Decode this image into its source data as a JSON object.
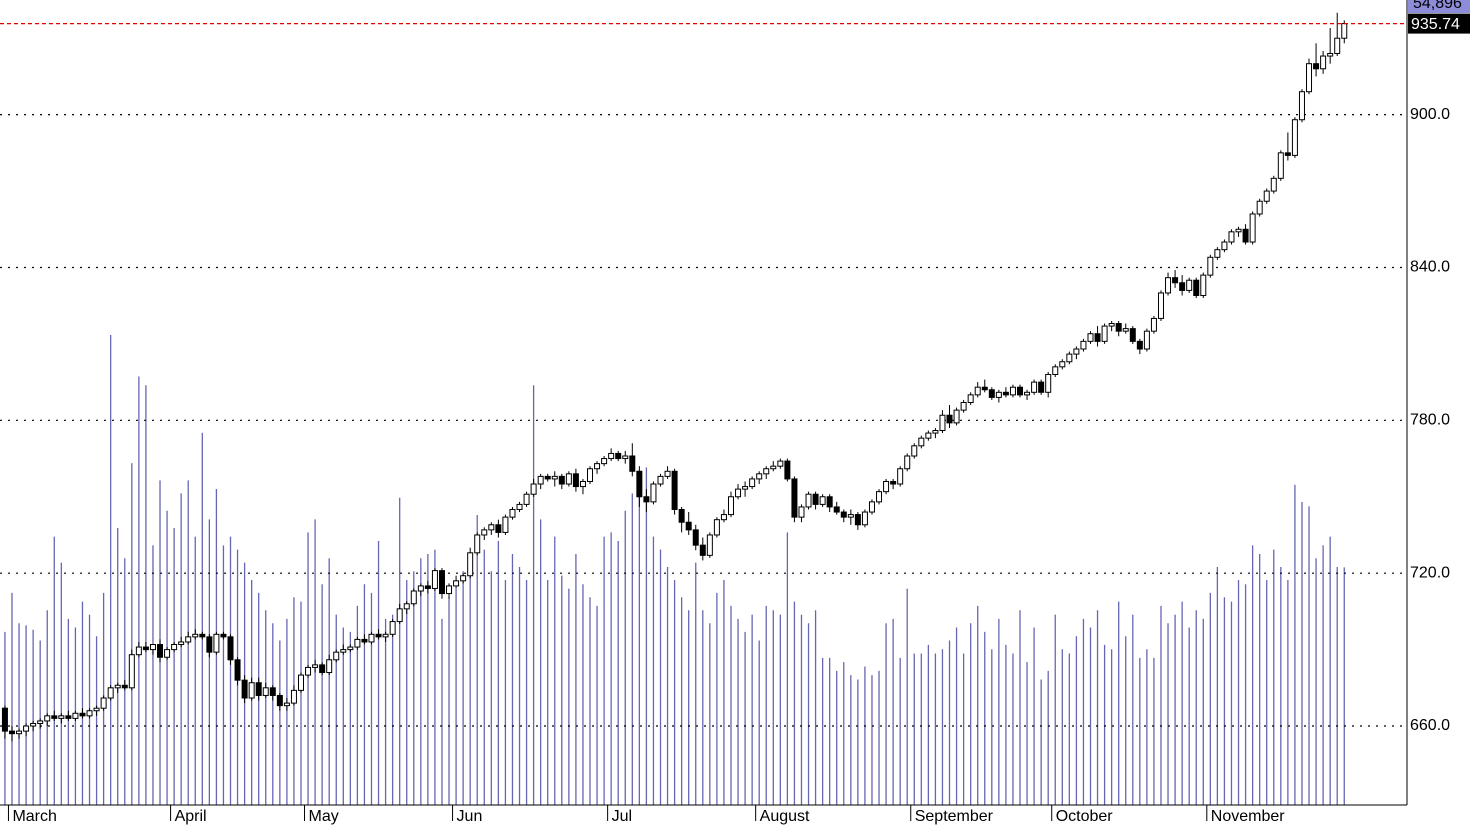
{
  "chart_data": {
    "type": "candlestick",
    "xlim": [
      -0.7,
      198.9
    ],
    "ylim": [
      629,
      945
    ],
    "y2lim": [
      0,
      186000
    ],
    "xticks": [
      {
        "value": 0.5,
        "label": "March"
      },
      {
        "value": 23.5,
        "label": "April"
      },
      {
        "value": 42.5,
        "label": "May"
      },
      {
        "value": 63.5,
        "label": "Jun"
      },
      {
        "value": 85.5,
        "label": "Jul"
      },
      {
        "value": 106.5,
        "label": "August"
      },
      {
        "value": 128.5,
        "label": "September"
      },
      {
        "value": 148.5,
        "label": "October"
      },
      {
        "value": 170.5,
        "label": "November"
      }
    ],
    "yticks": [
      {
        "value": 660,
        "label": "660.0"
      },
      {
        "value": 720,
        "label": "720.0"
      },
      {
        "value": 780,
        "label": "780.0"
      },
      {
        "value": 840,
        "label": "840.0"
      },
      {
        "value": 900,
        "label": "900.0"
      }
    ],
    "grid": true,
    "up_color": "#ffffff",
    "down_color": "#000000",
    "volume_color": "#6666b3",
    "last_line_color": "#e00000",
    "last_volume_label": "54,896",
    "ohlc": [
      [
        667,
        668,
        655,
        658
      ],
      [
        658,
        660,
        654,
        657
      ],
      [
        657,
        659,
        655,
        658
      ],
      [
        658,
        661,
        656,
        660
      ],
      [
        660,
        662,
        658,
        661
      ],
      [
        661,
        663,
        659,
        662
      ],
      [
        662,
        665,
        660,
        664
      ],
      [
        664,
        666,
        662,
        663
      ],
      [
        663,
        665,
        661,
        664
      ],
      [
        664,
        666,
        662,
        663
      ],
      [
        663,
        666,
        662,
        665
      ],
      [
        665,
        667,
        663,
        664
      ],
      [
        664,
        667,
        663,
        666
      ],
      [
        666,
        668,
        664,
        667
      ],
      [
        667,
        672,
        666,
        671
      ],
      [
        671,
        676,
        670,
        675
      ],
      [
        675,
        677,
        673,
        676
      ],
      [
        676,
        678,
        674,
        675
      ],
      [
        675,
        690,
        674,
        688
      ],
      [
        688,
        693,
        687,
        691
      ],
      [
        691,
        693,
        689,
        690
      ],
      [
        690,
        692,
        688,
        692
      ],
      [
        692,
        694,
        685,
        687
      ],
      [
        687,
        691,
        686,
        690
      ],
      [
        690,
        693,
        689,
        692
      ],
      [
        692,
        695,
        691,
        693
      ],
      [
        693,
        697,
        692,
        695
      ],
      [
        695,
        698,
        694,
        696
      ],
      [
        696,
        697,
        694,
        695
      ],
      [
        695,
        696,
        687,
        689
      ],
      [
        689,
        697,
        688,
        696
      ],
      [
        696,
        697,
        694,
        695
      ],
      [
        695,
        696,
        684,
        686
      ],
      [
        686,
        687,
        676,
        678
      ],
      [
        678,
        680,
        669,
        671
      ],
      [
        671,
        679,
        670,
        677
      ],
      [
        677,
        679,
        670,
        672
      ],
      [
        672,
        677,
        671,
        675
      ],
      [
        675,
        676,
        670,
        672
      ],
      [
        672,
        673,
        666,
        668
      ],
      [
        668,
        671,
        666,
        669
      ],
      [
        669,
        676,
        668,
        674
      ],
      [
        674,
        681,
        673,
        680
      ],
      [
        680,
        684,
        679,
        683
      ],
      [
        683,
        686,
        681,
        684
      ],
      [
        684,
        685,
        680,
        681
      ],
      [
        681,
        688,
        680,
        686
      ],
      [
        686,
        690,
        685,
        689
      ],
      [
        689,
        692,
        688,
        690
      ],
      [
        690,
        692,
        689,
        691
      ],
      [
        691,
        695,
        690,
        694
      ],
      [
        694,
        696,
        692,
        693
      ],
      [
        693,
        697,
        692,
        696
      ],
      [
        696,
        698,
        694,
        695
      ],
      [
        695,
        697,
        693,
        696
      ],
      [
        696,
        702,
        695,
        701
      ],
      [
        701,
        708,
        700,
        706
      ],
      [
        706,
        709,
        704,
        708
      ],
      [
        708,
        714,
        707,
        713
      ],
      [
        713,
        716,
        711,
        715
      ],
      [
        715,
        717,
        712,
        714
      ],
      [
        714,
        722,
        713,
        721
      ],
      [
        721,
        722,
        710,
        712
      ],
      [
        712,
        716,
        710,
        715
      ],
      [
        715,
        719,
        714,
        717
      ],
      [
        717,
        720,
        716,
        719
      ],
      [
        719,
        730,
        718,
        728
      ],
      [
        728,
        736,
        727,
        735
      ],
      [
        735,
        738,
        733,
        737
      ],
      [
        737,
        740,
        735,
        739
      ],
      [
        739,
        741,
        734,
        736
      ],
      [
        736,
        743,
        735,
        742
      ],
      [
        742,
        746,
        741,
        745
      ],
      [
        745,
        748,
        744,
        747
      ],
      [
        747,
        752,
        746,
        751
      ],
      [
        751,
        757,
        750,
        755
      ],
      [
        755,
        759,
        753,
        758
      ],
      [
        758,
        759,
        756,
        757
      ],
      [
        757,
        760,
        754,
        758
      ],
      [
        758,
        759,
        753,
        755
      ],
      [
        755,
        760,
        754,
        759
      ],
      [
        759,
        761,
        752,
        754
      ],
      [
        754,
        757,
        751,
        756
      ],
      [
        756,
        762,
        755,
        761
      ],
      [
        761,
        764,
        759,
        763
      ],
      [
        763,
        766,
        762,
        765
      ],
      [
        765,
        769,
        764,
        767
      ],
      [
        767,
        768,
        764,
        765
      ],
      [
        765,
        768,
        763,
        766
      ],
      [
        766,
        771,
        758,
        760
      ],
      [
        760,
        762,
        746,
        750
      ],
      [
        750,
        753,
        744,
        748
      ],
      [
        748,
        756,
        747,
        755
      ],
      [
        755,
        759,
        754,
        758
      ],
      [
        758,
        762,
        757,
        760
      ],
      [
        760,
        761,
        743,
        745
      ],
      [
        745,
        746,
        736,
        740
      ],
      [
        740,
        744,
        735,
        737
      ],
      [
        737,
        739,
        729,
        731
      ],
      [
        731,
        734,
        725,
        727
      ],
      [
        727,
        736,
        726,
        735
      ],
      [
        735,
        742,
        734,
        741
      ],
      [
        741,
        745,
        740,
        743
      ],
      [
        743,
        752,
        742,
        750
      ],
      [
        750,
        755,
        749,
        753
      ],
      [
        753,
        756,
        750,
        754
      ],
      [
        754,
        758,
        753,
        757
      ],
      [
        757,
        760,
        755,
        759
      ],
      [
        759,
        762,
        757,
        761
      ],
      [
        761,
        764,
        760,
        762
      ],
      [
        762,
        765,
        761,
        764
      ],
      [
        764,
        765,
        756,
        757
      ],
      [
        757,
        758,
        740,
        742
      ],
      [
        742,
        747,
        740,
        746
      ],
      [
        746,
        752,
        745,
        751
      ],
      [
        751,
        752,
        745,
        747
      ],
      [
        747,
        751,
        746,
        750
      ],
      [
        750,
        751,
        744,
        746
      ],
      [
        746,
        748,
        743,
        744
      ],
      [
        744,
        745,
        740,
        742
      ],
      [
        742,
        745,
        739,
        743
      ],
      [
        743,
        744,
        737,
        739
      ],
      [
        739,
        745,
        738,
        744
      ],
      [
        744,
        749,
        743,
        748
      ],
      [
        748,
        753,
        747,
        752
      ],
      [
        752,
        757,
        751,
        756
      ],
      [
        756,
        757,
        753,
        755
      ],
      [
        755,
        762,
        754,
        761
      ],
      [
        761,
        767,
        760,
        766
      ],
      [
        766,
        771,
        765,
        770
      ],
      [
        770,
        774,
        769,
        773
      ],
      [
        773,
        776,
        772,
        775
      ],
      [
        775,
        777,
        773,
        776
      ],
      [
        776,
        784,
        775,
        782
      ],
      [
        782,
        786,
        777,
        779
      ],
      [
        779,
        785,
        778,
        784
      ],
      [
        784,
        788,
        783,
        787
      ],
      [
        787,
        791,
        786,
        790
      ],
      [
        790,
        795,
        789,
        793
      ],
      [
        793,
        796,
        791,
        792
      ],
      [
        792,
        793,
        788,
        789
      ],
      [
        789,
        792,
        787,
        791
      ],
      [
        791,
        793,
        789,
        790
      ],
      [
        790,
        794,
        789,
        793
      ],
      [
        793,
        794,
        789,
        790
      ],
      [
        790,
        792,
        788,
        791
      ],
      [
        791,
        796,
        790,
        795
      ],
      [
        795,
        796,
        790,
        791
      ],
      [
        791,
        799,
        789,
        798
      ],
      [
        798,
        802,
        797,
        801
      ],
      [
        801,
        804,
        800,
        803
      ],
      [
        803,
        807,
        802,
        806
      ],
      [
        806,
        809,
        804,
        808
      ],
      [
        808,
        812,
        807,
        811
      ],
      [
        811,
        815,
        810,
        814
      ],
      [
        814,
        817,
        809,
        811
      ],
      [
        811,
        818,
        810,
        817
      ],
      [
        817,
        819,
        815,
        818
      ],
      [
        818,
        819,
        813,
        815
      ],
      [
        815,
        818,
        814,
        816
      ],
      [
        816,
        817,
        810,
        811
      ],
      [
        811,
        812,
        806,
        808
      ],
      [
        808,
        816,
        807,
        815
      ],
      [
        815,
        821,
        814,
        820
      ],
      [
        820,
        831,
        819,
        830
      ],
      [
        830,
        838,
        829,
        836
      ],
      [
        836,
        839,
        832,
        834
      ],
      [
        834,
        837,
        829,
        831
      ],
      [
        831,
        836,
        830,
        835
      ],
      [
        835,
        836,
        828,
        829
      ],
      [
        829,
        838,
        828,
        837
      ],
      [
        837,
        845,
        836,
        844
      ],
      [
        844,
        848,
        843,
        847
      ],
      [
        847,
        851,
        846,
        850
      ],
      [
        850,
        855,
        849,
        854
      ],
      [
        854,
        856,
        852,
        855
      ],
      [
        855,
        857,
        849,
        850
      ],
      [
        850,
        862,
        849,
        861
      ],
      [
        861,
        867,
        860,
        866
      ],
      [
        866,
        871,
        865,
        870
      ],
      [
        870,
        876,
        869,
        875
      ],
      [
        875,
        886,
        874,
        885
      ],
      [
        885,
        893,
        882,
        884
      ],
      [
        884,
        899,
        883,
        898
      ],
      [
        898,
        910,
        897,
        909
      ],
      [
        909,
        922,
        908,
        920
      ],
      [
        920,
        928,
        915,
        918
      ],
      [
        918,
        925,
        916,
        923
      ],
      [
        923,
        934,
        920,
        924
      ],
      [
        924,
        940,
        923,
        930
      ],
      [
        930,
        937,
        928,
        935.74
      ]
    ],
    "volume": [
      40000,
      49000,
      42000,
      41500,
      40500,
      38000,
      45000,
      62000,
      56000,
      43000,
      41000,
      47000,
      44000,
      39000,
      49000,
      108600,
      64000,
      57000,
      79000,
      99000,
      97000,
      60000,
      75000,
      68000,
      64000,
      72000,
      75000,
      62000,
      86000,
      66000,
      73000,
      60000,
      62000,
      59000,
      56000,
      52000,
      49000,
      45000,
      42000,
      38000,
      43000,
      48000,
      47000,
      63000,
      66000,
      51000,
      57000,
      44000,
      41000,
      40000,
      46000,
      51000,
      49000,
      61000,
      43000,
      44000,
      71000,
      52000,
      54000,
      57000,
      58000,
      59000,
      43000,
      48000,
      50000,
      54000,
      56000,
      67000,
      59000,
      54000,
      61000,
      52000,
      58000,
      55000,
      52000,
      97000,
      66000,
      52000,
      62000,
      53000,
      50000,
      58000,
      51000,
      48000,
      46000,
      62000,
      63000,
      61000,
      68000,
      72000,
      74000,
      78000,
      62000,
      59000,
      55000,
      52000,
      48000,
      45000,
      56000,
      45000,
      42000,
      49000,
      52000,
      46000,
      43000,
      40000,
      44000,
      38000,
      46000,
      45000,
      44000,
      63000,
      47000,
      44000,
      42000,
      45000,
      34000,
      34000,
      31000,
      33000,
      30000,
      29000,
      32000,
      30000,
      31000,
      42000,
      43000,
      34000,
      50000,
      35000,
      35000,
      37000,
      35000,
      36000,
      38000,
      41000,
      35000,
      42000,
      46000,
      40000,
      36000,
      43000,
      37000,
      35000,
      45000,
      33000,
      41000,
      29000,
      31000,
      44000,
      36000,
      35000,
      39000,
      43000,
      41000,
      45000,
      37000,
      36000,
      47000,
      39000,
      44000,
      34000,
      36000,
      34000,
      46000,
      42000,
      44000,
      47000,
      41000,
      45000,
      43000,
      49000,
      55000,
      48000,
      47000,
      52000,
      51000,
      60000,
      58000,
      52000,
      59000,
      55000,
      52000,
      74000,
      70000,
      69000,
      57000,
      60000,
      62000,
      55000,
      54896
    ]
  }
}
